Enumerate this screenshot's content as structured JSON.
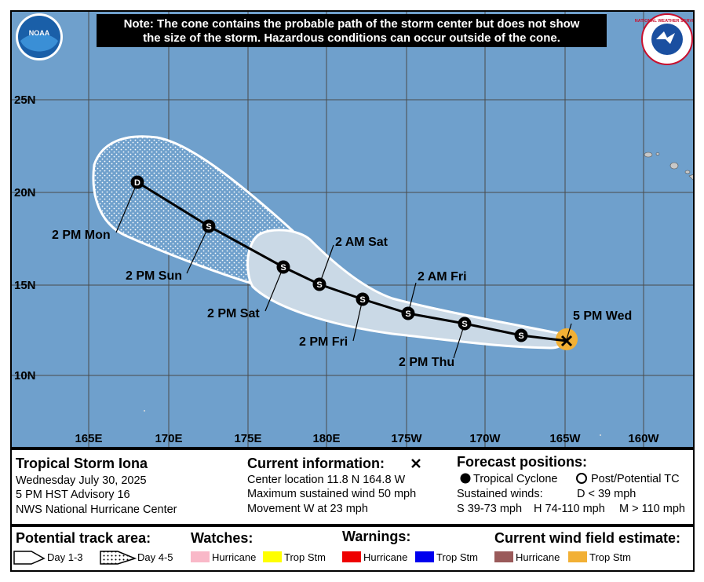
{
  "note_lines": [
    "Note: The cone contains the probable path of the storm center but does not show",
    "the size of the storm. Hazardous conditions can occur outside of the cone."
  ],
  "logos": {
    "noaa": "NOAA",
    "nws": "NATIONAL WEATHER SERVICE"
  },
  "map": {
    "lat_labels": [
      "25N",
      "20N",
      "15N",
      "10N"
    ],
    "lon_labels": [
      "165E",
      "170E",
      "175E",
      "180E",
      "175W",
      "170W",
      "165W",
      "160W"
    ],
    "track_symbols": [
      "S",
      "S",
      "S",
      "S",
      "S",
      "S",
      "S",
      "D"
    ],
    "time_labels": [
      "5 PM Wed",
      "2 PM Thu",
      "2 AM Fri",
      "2 PM Fri",
      "2 AM Sat",
      "2 PM Sat",
      "2 PM Sun",
      "2 PM Mon"
    ]
  },
  "info": {
    "title": "Tropical Storm Iona",
    "date": "Wednesday July 30, 2025",
    "advisory": "5 PM HST Advisory 16",
    "center": "NWS National Hurricane Center"
  },
  "current": {
    "heading": "Current information:",
    "location": "Center location 11.8 N 164.8 W",
    "wind": "Maximum sustained wind 50 mph",
    "movement": "Movement W at 23 mph"
  },
  "forecast": {
    "heading": "Forecast positions:",
    "tropical": "Tropical Cyclone",
    "post": "Post/Potential TC",
    "winds_heading": "Sustained winds:",
    "d": "D < 39 mph",
    "s": "S 39-73 mph",
    "h": "H 74-110 mph",
    "m": "M > 110 mph"
  },
  "legend": {
    "track_heading": "Potential track area:",
    "day13": "Day 1-3",
    "day45": "Day 4-5",
    "watches": {
      "heading": "Watches:",
      "hurricane": "Hurricane",
      "tropstm": "Trop Stm"
    },
    "warnings": {
      "heading": "Warnings:",
      "hurricane": "Hurricane",
      "tropstm": "Trop Stm"
    },
    "wind": {
      "heading": "Current wind field estimate:",
      "hurricane": "Hurricane",
      "tropstm": "Trop Stm"
    }
  }
}
